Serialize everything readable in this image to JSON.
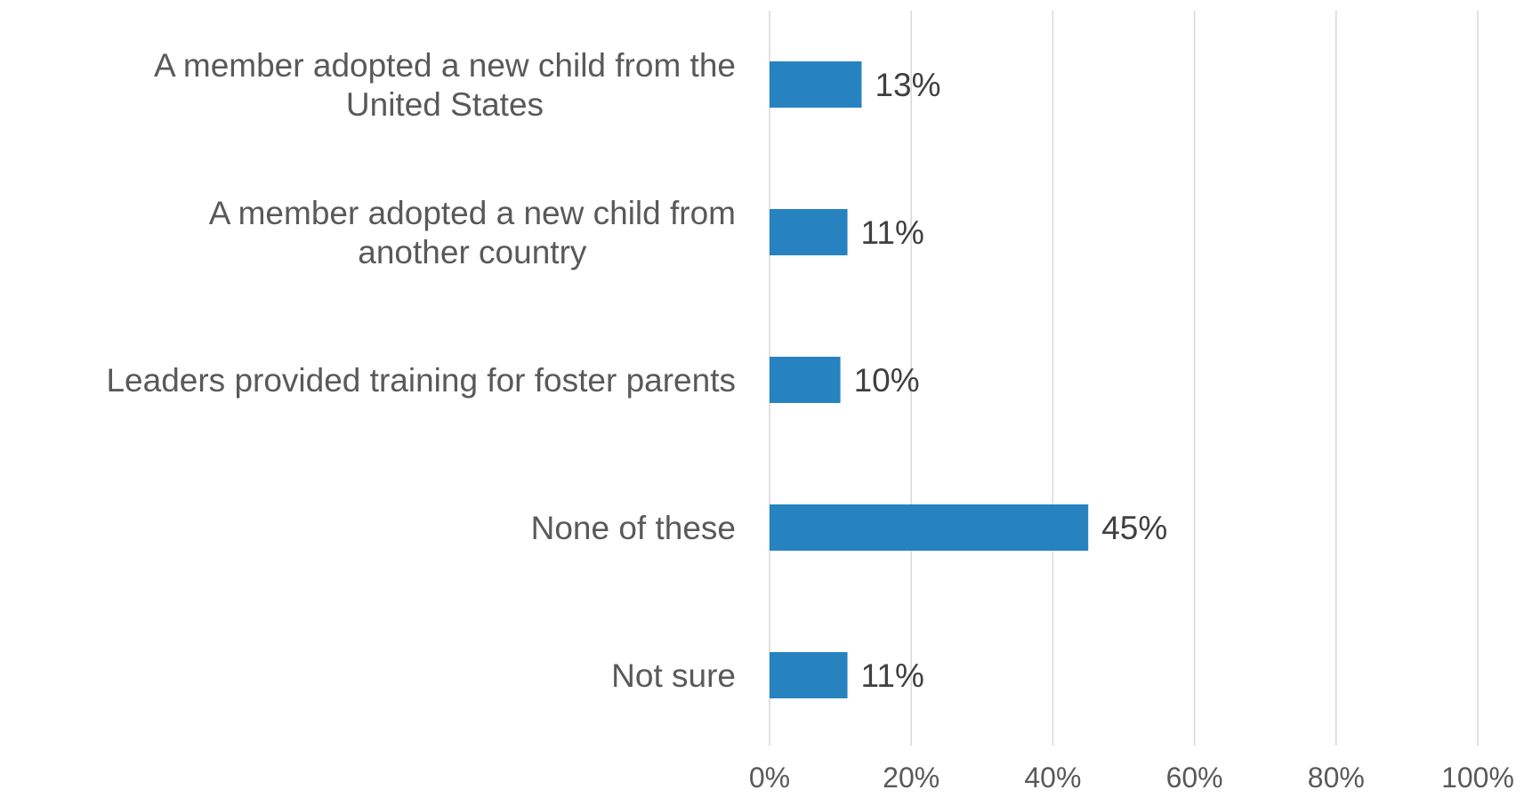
{
  "chart_data": {
    "type": "bar",
    "orientation": "horizontal",
    "categories": [
      [
        "A member adopted a new child from the",
        "United States"
      ],
      [
        "A member adopted a new child from",
        "another country"
      ],
      [
        "Leaders provided training for foster parents"
      ],
      [
        "None of these"
      ],
      [
        "Not sure"
      ]
    ],
    "values": [
      13,
      11,
      10,
      45,
      11
    ],
    "value_labels": [
      "13%",
      "11%",
      "10%",
      "45%",
      "11%"
    ],
    "xlim": [
      0,
      100
    ],
    "x_ticks": [
      0,
      20,
      40,
      60,
      80,
      100
    ],
    "x_tick_labels": [
      "0%",
      "20%",
      "40%",
      "60%",
      "80%",
      "100%"
    ],
    "grid": "vertical",
    "legend": "none",
    "bar_color": "#2683C0"
  }
}
